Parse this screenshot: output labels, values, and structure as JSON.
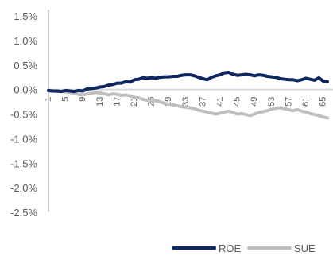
{
  "chart_data": {
    "type": "line",
    "title": "",
    "xlabel": "",
    "ylabel": "",
    "ylim": [
      -0.025,
      0.015
    ],
    "yticks": [
      0.015,
      0.01,
      0.005,
      0.0,
      -0.005,
      -0.01,
      -0.015,
      -0.02,
      -0.025
    ],
    "ytick_labels": [
      "1.5%",
      "1.0%",
      "0.5%",
      "0.0%",
      "-0.5%",
      "-1.0%",
      "-1.5%",
      "-2.0%",
      "-2.5%"
    ],
    "xlim": [
      1,
      66
    ],
    "xticks": [
      1,
      5,
      9,
      13,
      17,
      21,
      25,
      29,
      33,
      37,
      41,
      45,
      49,
      53,
      57,
      61,
      65
    ],
    "xtick_labels": [
      "1",
      "5",
      "9",
      "13",
      "17",
      "21",
      "25",
      "29",
      "33",
      "37",
      "41",
      "45",
      "49",
      "53",
      "57",
      "61",
      "65"
    ],
    "grid": false,
    "legend_position": "bottom-right",
    "colors": {
      "ROE": "#0f2660",
      "SUE": "#bfbfbf",
      "axis": "#bfbfbf",
      "zero_line": "#d9d9d9"
    },
    "series": [
      {
        "name": "ROE",
        "x": [
          1,
          2,
          3,
          4,
          5,
          6,
          7,
          8,
          9,
          10,
          11,
          12,
          13,
          14,
          15,
          16,
          17,
          18,
          19,
          20,
          21,
          22,
          23,
          24,
          25,
          26,
          27,
          28,
          29,
          30,
          31,
          32,
          33,
          34,
          35,
          36,
          37,
          38,
          39,
          40,
          41,
          42,
          43,
          44,
          45,
          46,
          47,
          48,
          49,
          50,
          51,
          52,
          53,
          54,
          55,
          56,
          57,
          58,
          59,
          60,
          61,
          62,
          63,
          64,
          65,
          66
        ],
        "values": [
          -0.0002,
          -0.0003,
          -0.0003,
          -0.0004,
          -0.0002,
          -0.0003,
          -0.0004,
          -0.0002,
          -0.0003,
          0.0001,
          0.0002,
          0.0003,
          0.0005,
          0.0006,
          0.0009,
          0.001,
          0.0013,
          0.0013,
          0.0016,
          0.0015,
          0.002,
          0.0021,
          0.0024,
          0.0023,
          0.0024,
          0.0023,
          0.0025,
          0.0026,
          0.0026,
          0.0027,
          0.0027,
          0.0029,
          0.003,
          0.003,
          0.0028,
          0.0025,
          0.0022,
          0.002,
          0.0025,
          0.0028,
          0.003,
          0.0034,
          0.0035,
          0.0031,
          0.0029,
          0.003,
          0.0031,
          0.003,
          0.0028,
          0.003,
          0.0029,
          0.0027,
          0.0026,
          0.0025,
          0.0022,
          0.0021,
          0.002,
          0.002,
          0.0018,
          0.002,
          0.0023,
          0.0021,
          0.0019,
          0.0024,
          0.0017,
          0.0016
        ]
      },
      {
        "name": "SUE",
        "x": [
          1,
          2,
          3,
          4,
          5,
          6,
          7,
          8,
          9,
          10,
          11,
          12,
          13,
          14,
          15,
          16,
          17,
          18,
          19,
          20,
          21,
          22,
          23,
          24,
          25,
          26,
          27,
          28,
          29,
          30,
          31,
          32,
          33,
          34,
          35,
          36,
          37,
          38,
          39,
          40,
          41,
          42,
          43,
          44,
          45,
          46,
          47,
          48,
          49,
          50,
          51,
          52,
          53,
          54,
          55,
          56,
          57,
          58,
          59,
          60,
          61,
          62,
          63,
          64,
          65,
          66
        ],
        "values": [
          -0.0003,
          -0.0003,
          -0.0004,
          -0.0004,
          -0.0005,
          -0.0006,
          -0.0008,
          -0.001,
          -0.0011,
          -0.0009,
          -0.0008,
          -0.0006,
          -0.0007,
          -0.0009,
          -0.0011,
          -0.0009,
          -0.001,
          -0.0012,
          -0.0011,
          -0.0013,
          -0.0016,
          -0.0017,
          -0.002,
          -0.0022,
          -0.0024,
          -0.0022,
          -0.0025,
          -0.0028,
          -0.003,
          -0.0031,
          -0.0033,
          -0.0035,
          -0.0036,
          -0.0037,
          -0.0039,
          -0.0042,
          -0.0044,
          -0.0046,
          -0.0048,
          -0.005,
          -0.0048,
          -0.0046,
          -0.0044,
          -0.0047,
          -0.005,
          -0.0049,
          -0.0051,
          -0.0053,
          -0.005,
          -0.0047,
          -0.0045,
          -0.0043,
          -0.004,
          -0.0038,
          -0.0037,
          -0.0039,
          -0.0041,
          -0.0043,
          -0.0041,
          -0.0044,
          -0.0046,
          -0.0049,
          -0.0051,
          -0.0053,
          -0.0056,
          -0.0058
        ]
      }
    ]
  }
}
